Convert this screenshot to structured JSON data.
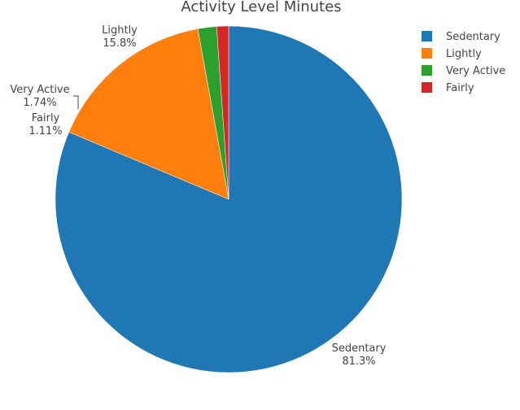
{
  "chart_data": {
    "type": "pie",
    "title": "Activity Level Minutes",
    "direction": "clockwise",
    "start_angle_deg": 0,
    "sort": "descending",
    "slices": [
      {
        "label": "Sedentary",
        "value": 81.3,
        "percent_text": "81.3%",
        "color": "#1f77b4"
      },
      {
        "label": "Lightly",
        "value": 15.8,
        "percent_text": "15.8%",
        "color": "#ff7f0e"
      },
      {
        "label": "Very Active",
        "value": 1.74,
        "percent_text": "1.74%",
        "color": "#2ca02c"
      },
      {
        "label": "Fairly",
        "value": 1.11,
        "percent_text": "1.11%",
        "color": "#d62728"
      }
    ],
    "legend": {
      "placement": "top-right",
      "entries": [
        "Sedentary",
        "Lightly",
        "Very Active",
        "Fairly"
      ]
    }
  }
}
